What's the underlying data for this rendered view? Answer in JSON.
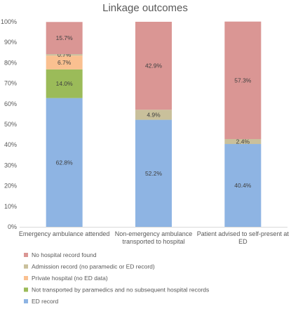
{
  "chart_data": {
    "type": "bar",
    "stacked": true,
    "title": "Linkage outcomes",
    "xlabel": "",
    "ylabel": "",
    "ylim": [
      0,
      100
    ],
    "y_ticks": [
      "0%",
      "10%",
      "20%",
      "30%",
      "40%",
      "50%",
      "60%",
      "70%",
      "80%",
      "90%",
      "100%"
    ],
    "categories": [
      [
        "Emergency ambulance attended"
      ],
      [
        "Non-emergency ambulance",
        "transported to hospital"
      ],
      [
        "Patient advised to self-present at",
        "ED"
      ]
    ],
    "grid": false,
    "legend_position": "bottom",
    "series": [
      {
        "name": "ED record",
        "color": "#8eb4e3",
        "values": [
          62.8,
          52.2,
          40.4
        ],
        "labels": [
          "62.8%",
          "52.2%",
          "40.4%"
        ]
      },
      {
        "name": "Not transported by paramedics and no subsequent hospital records",
        "color": "#9bbb59",
        "values": [
          14.0,
          0,
          0
        ],
        "labels": [
          "14.0%",
          "",
          ""
        ]
      },
      {
        "name": "Private hospital (no ED data)",
        "color": "#fac090",
        "values": [
          6.7,
          0,
          0
        ],
        "labels": [
          "6.7%",
          "",
          ""
        ]
      },
      {
        "name": "Admission record (no paramedic or ED record)",
        "color": "#c9c09b",
        "values": [
          0.7,
          4.9,
          2.4
        ],
        "labels": [
          "0.7%",
          "4.9%",
          "2.4%"
        ]
      },
      {
        "name": "No hospital record found",
        "color": "#da9694",
        "values": [
          15.7,
          42.9,
          57.3
        ],
        "labels": [
          "15.7%",
          "42.9%",
          "57.3%"
        ]
      }
    ]
  }
}
